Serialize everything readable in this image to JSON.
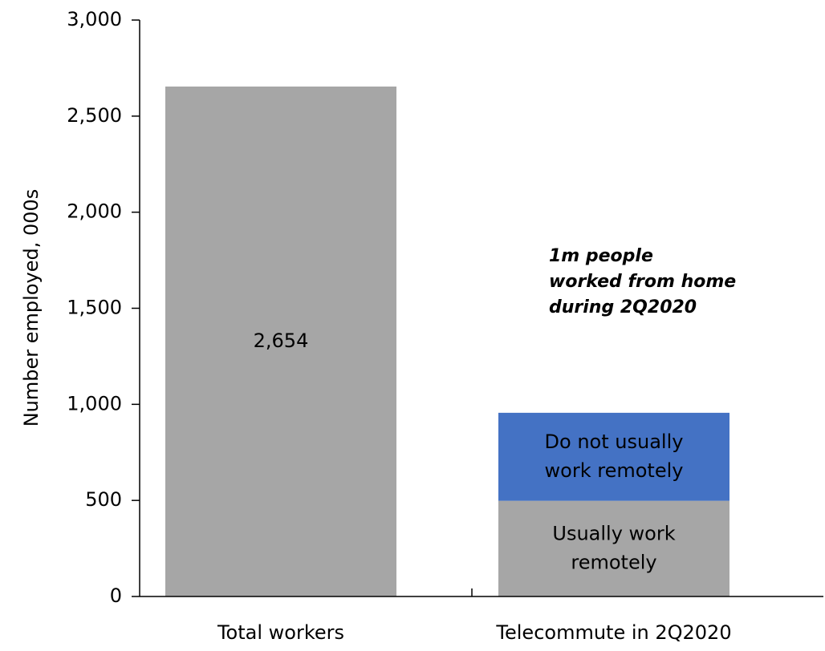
{
  "chart_data": {
    "type": "bar",
    "stacked": true,
    "categories": [
      "Total workers",
      "Telecommute in 2Q2020"
    ],
    "series": [
      {
        "values": [
          2654,
          null
        ],
        "segment_labels": [
          "2,654",
          ""
        ],
        "color": "#a6a6a6"
      },
      {
        "values": [
          null,
          498
        ],
        "segment_labels": [
          "",
          "Usually work remotely"
        ],
        "color": "#a6a6a6"
      },
      {
        "values": [
          null,
          458
        ],
        "segment_labels": [
          "",
          "Do not usually work remotely"
        ],
        "color": "#4472c4"
      }
    ],
    "ylabel": "Number employed, 000s",
    "ylim": [
      0,
      3000
    ],
    "yticks": [
      0,
      500,
      1000,
      1500,
      2000,
      2500,
      3000
    ],
    "ytick_labels": [
      "0",
      "500",
      "1,000",
      "1,500",
      "2,000",
      "2,500",
      "3,000"
    ],
    "annotation": "1m people worked from home during 2Q2020",
    "grid": false,
    "legend": "none"
  }
}
